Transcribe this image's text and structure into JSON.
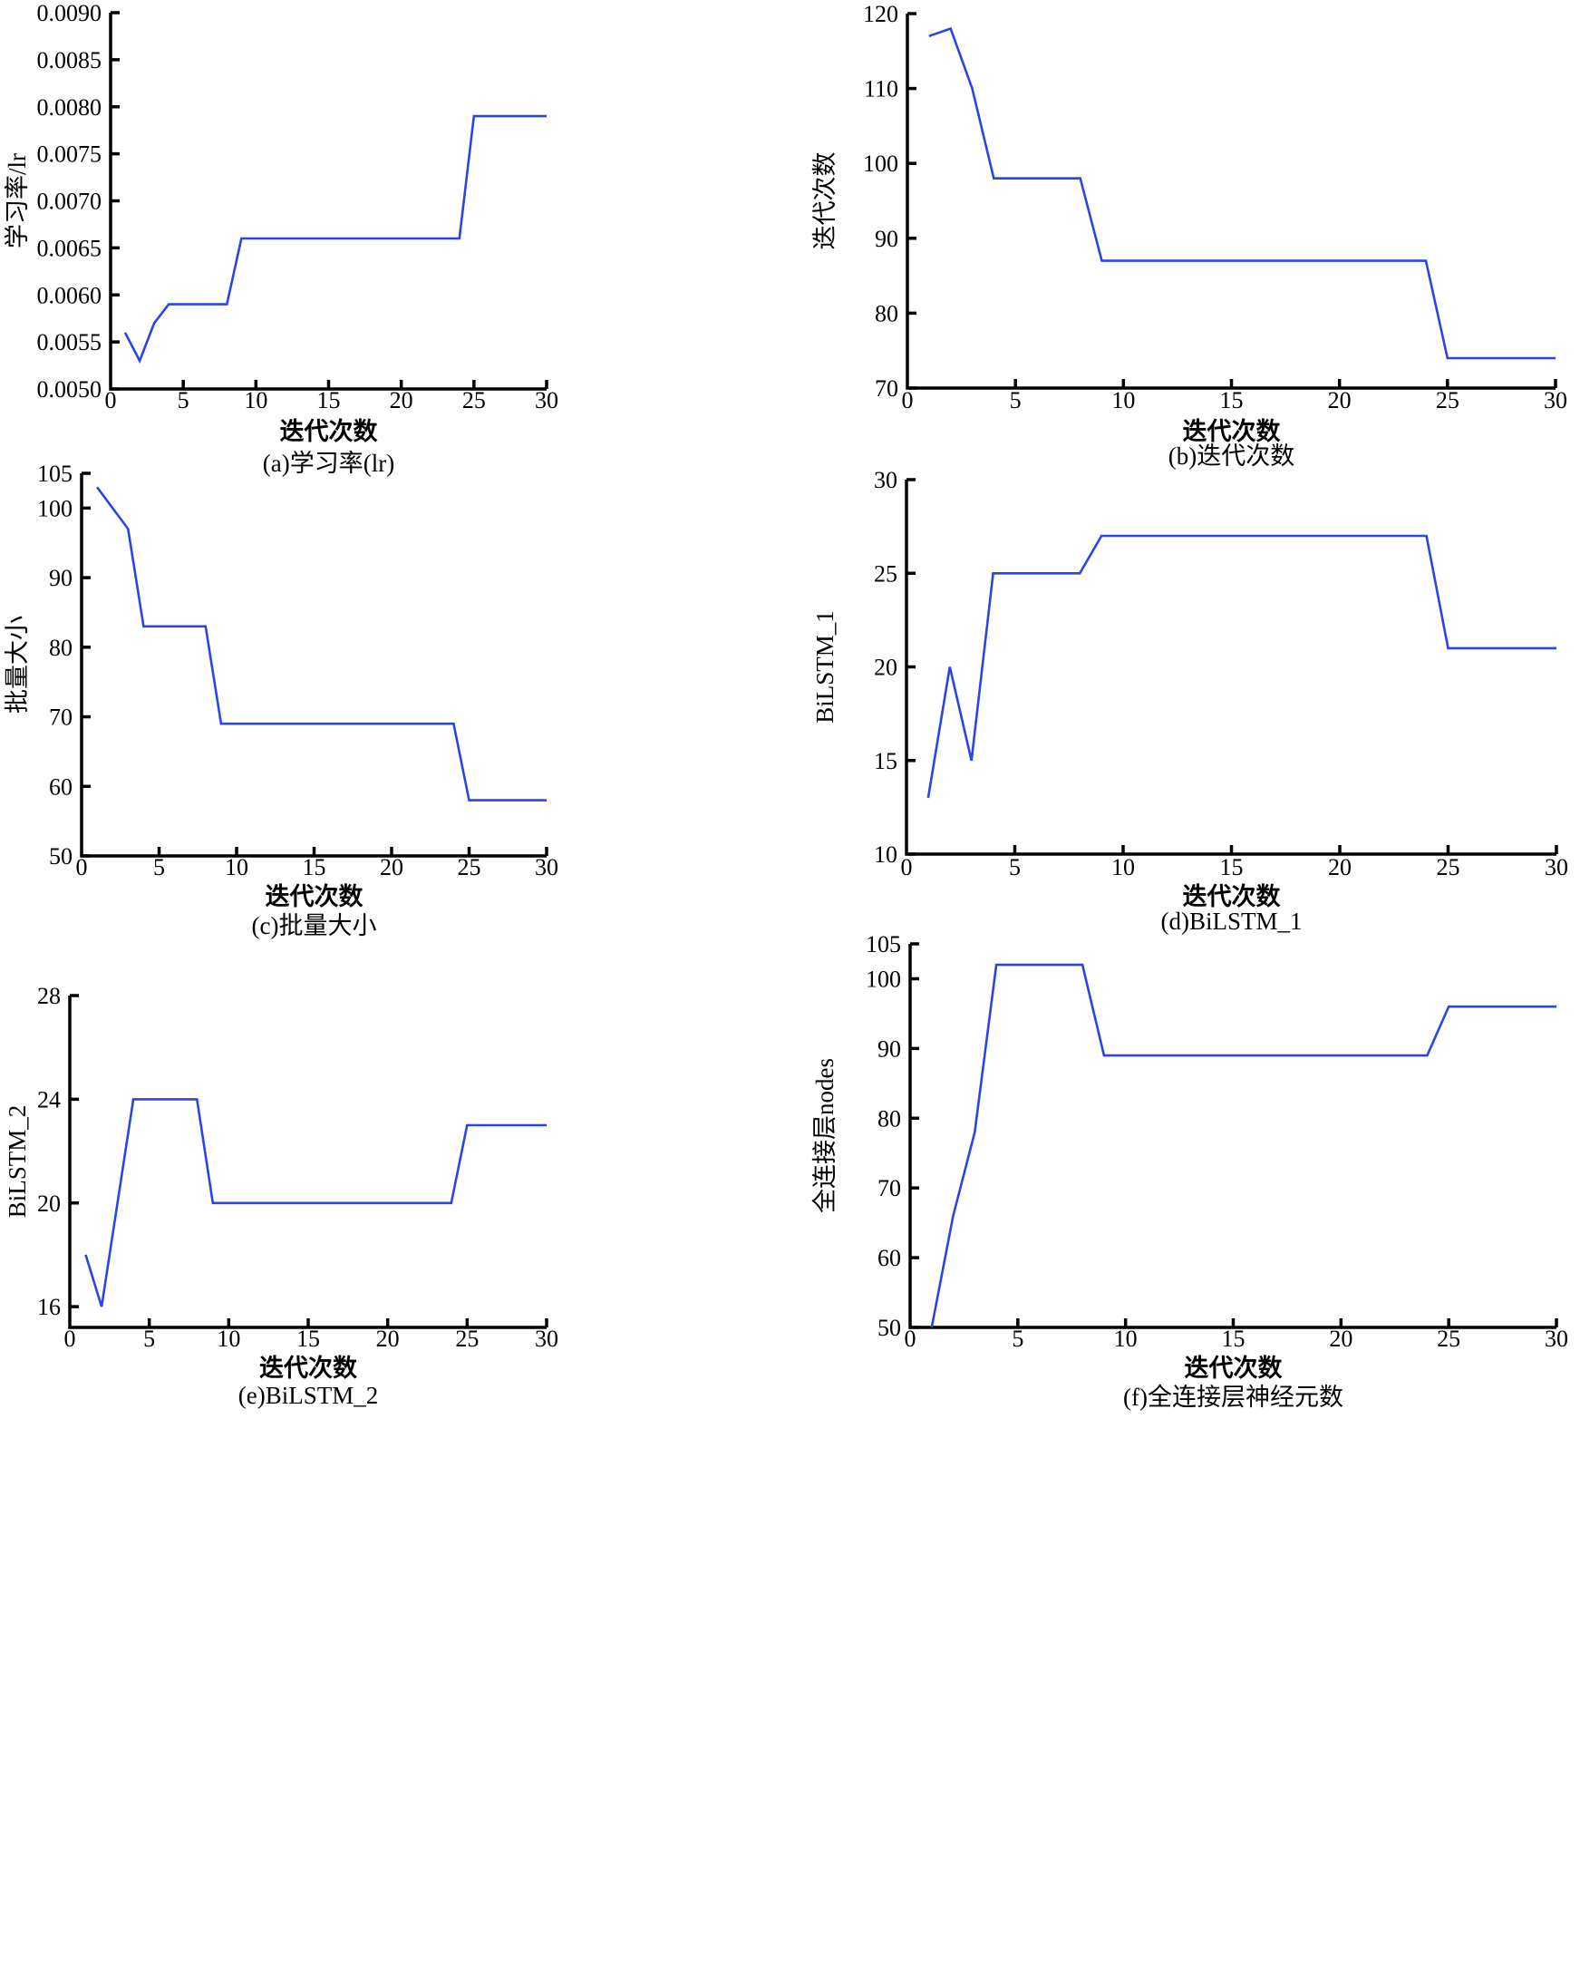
{
  "figure": {
    "line_color": "#2a45e6",
    "axis_color": "#000000"
  },
  "chart_data": [
    {
      "id": "a",
      "type": "line",
      "caption": "(a)学习率(lr)",
      "xlabel": "迭代次数",
      "ylabel": "学习率/lr",
      "xlim": [
        0,
        30
      ],
      "ylim": [
        0.005,
        0.009
      ],
      "xticks": [
        0,
        5,
        10,
        15,
        20,
        25,
        30
      ],
      "yticks": [
        0.005,
        0.0055,
        0.006,
        0.0065,
        0.007,
        0.0075,
        0.008,
        0.0085,
        0.009
      ],
      "ytick_labels": [
        "0.0050",
        "0.0055",
        "0.0060",
        "0.0065",
        "0.0070",
        "0.0075",
        "0.0080",
        "0.0085",
        "0.0090"
      ],
      "xtick_labels": [
        "0",
        "5",
        "10",
        "15",
        "20",
        "25",
        "30"
      ],
      "grid": false,
      "series": [
        {
          "name": "学习率",
          "x": [
            1,
            2,
            3,
            4,
            8,
            9,
            24,
            25,
            30
          ],
          "y": [
            0.0056,
            0.0053,
            0.0057,
            0.0059,
            0.0059,
            0.0066,
            0.0066,
            0.0079,
            0.0079
          ]
        }
      ]
    },
    {
      "id": "b",
      "type": "line",
      "caption": "(b)迭代次数",
      "xlabel": "迭代次数",
      "ylabel": "迭代次数",
      "xlim": [
        0,
        30
      ],
      "ylim": [
        70,
        120
      ],
      "xticks": [
        0,
        5,
        10,
        15,
        20,
        25,
        30
      ],
      "yticks": [
        70,
        80,
        90,
        100,
        110,
        120
      ],
      "ytick_labels": [
        "70",
        "80",
        "90",
        "100",
        "110",
        "120"
      ],
      "xtick_labels": [
        "0",
        "5",
        "10",
        "15",
        "20",
        "25",
        "30"
      ],
      "grid": false,
      "series": [
        {
          "name": "迭代次数",
          "x": [
            1,
            2,
            3,
            4,
            8,
            9,
            24,
            25,
            30
          ],
          "y": [
            117,
            118,
            110,
            98,
            98,
            87,
            87,
            74,
            74
          ]
        }
      ]
    },
    {
      "id": "c",
      "type": "line",
      "caption": "(c)批量大小",
      "xlabel": "迭代次数",
      "ylabel": "批量大小",
      "xlim": [
        0,
        30
      ],
      "ylim": [
        50,
        105
      ],
      "xticks": [
        0,
        5,
        10,
        15,
        20,
        25,
        30
      ],
      "yticks": [
        50,
        60,
        70,
        80,
        90,
        100,
        105
      ],
      "ytick_labels": [
        "50",
        "60",
        "70",
        "80",
        "90",
        "100",
        "105"
      ],
      "xtick_labels": [
        "0",
        "5",
        "10",
        "15",
        "20",
        "25",
        "30"
      ],
      "grid": false,
      "series": [
        {
          "name": "批量大小",
          "x": [
            1,
            3,
            4,
            8,
            9,
            24,
            25,
            30
          ],
          "y": [
            103,
            97,
            83,
            83,
            69,
            69,
            58,
            58
          ]
        }
      ]
    },
    {
      "id": "d",
      "type": "line",
      "caption": "(d)BiLSTM_1",
      "xlabel": "迭代次数",
      "ylabel": "BiLSTM_1",
      "xlim": [
        0,
        30
      ],
      "ylim": [
        10,
        30
      ],
      "xticks": [
        0,
        5,
        10,
        15,
        20,
        25,
        30
      ],
      "yticks": [
        10,
        15,
        20,
        25,
        30
      ],
      "ytick_labels": [
        "10",
        "15",
        "20",
        "25",
        "30"
      ],
      "xtick_labels": [
        "0",
        "5",
        "10",
        "15",
        "20",
        "25",
        "30"
      ],
      "grid": false,
      "series": [
        {
          "name": "BiLSTM_1",
          "x": [
            1,
            2,
            3,
            4,
            8,
            9,
            24,
            25,
            30
          ],
          "y": [
            13,
            20,
            15,
            25,
            25,
            27,
            27,
            21,
            21
          ]
        }
      ]
    },
    {
      "id": "e",
      "type": "line",
      "caption": "(e)BiLSTM_2",
      "xlabel": "迭代次数",
      "ylabel": "BiLSTM_2",
      "xlim": [
        0,
        30
      ],
      "ylim": [
        15.2,
        28
      ],
      "xticks": [
        0,
        5,
        10,
        15,
        20,
        25,
        30
      ],
      "yticks": [
        16,
        20,
        24,
        28
      ],
      "ytick_labels": [
        "16",
        "20",
        "24",
        "28"
      ],
      "xtick_labels": [
        "0",
        "5",
        "10",
        "15",
        "20",
        "25",
        "30"
      ],
      "grid": false,
      "series": [
        {
          "name": "BiLSTM_2",
          "x": [
            1,
            2,
            4,
            8,
            9,
            24,
            25,
            30
          ],
          "y": [
            18,
            16,
            24,
            24,
            20,
            20,
            23,
            23
          ]
        }
      ]
    },
    {
      "id": "f",
      "type": "line",
      "caption": "(f)全连接层神经元数",
      "xlabel": "迭代次数",
      "ylabel": "全连接层nodes",
      "xlim": [
        0,
        30
      ],
      "ylim": [
        50,
        105
      ],
      "xticks": [
        0,
        5,
        10,
        15,
        20,
        25,
        30
      ],
      "yticks": [
        50,
        60,
        70,
        80,
        90,
        100,
        105
      ],
      "ytick_labels": [
        "50",
        "60",
        "70",
        "80",
        "90",
        "100",
        "105"
      ],
      "xtick_labels": [
        "0",
        "5",
        "10",
        "15",
        "20",
        "25",
        "30"
      ],
      "grid": false,
      "series": [
        {
          "name": "全连接层神经元数",
          "x": [
            1,
            2,
            3,
            4,
            8,
            9,
            24,
            25,
            30
          ],
          "y": [
            50,
            66,
            78,
            102,
            102,
            89,
            89,
            96,
            96
          ]
        }
      ]
    }
  ]
}
